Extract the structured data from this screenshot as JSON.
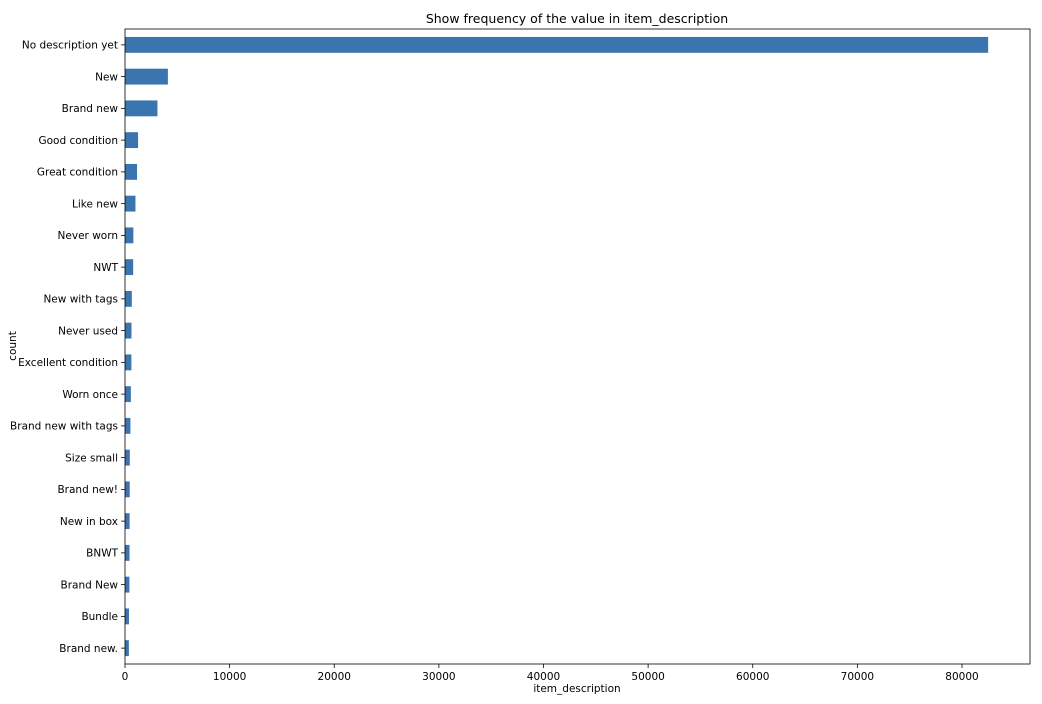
{
  "chart_data": {
    "type": "bar",
    "orientation": "horizontal",
    "title": "Show frequency of the value in item_description",
    "xlabel": "item_description",
    "ylabel": "count",
    "xlim": [
      0,
      86500
    ],
    "xticks": [
      0,
      10000,
      20000,
      30000,
      40000,
      50000,
      60000,
      70000,
      80000
    ],
    "grid": false,
    "legend": "none",
    "bar_color": "#3a75b0",
    "categories": [
      "No description yet",
      "New",
      "Brand new",
      "Good condition",
      "Great condition",
      "Like new",
      "Never worn",
      "NWT",
      "New with tags",
      "Never used",
      "Excellent condition",
      "Worn once",
      "Brand new with tags",
      "Size small",
      "Brand new!",
      "New in box",
      "BNWT",
      "Brand New",
      "Bundle",
      "Brand new."
    ],
    "values": [
      82500,
      4100,
      3100,
      1250,
      1150,
      1000,
      800,
      780,
      650,
      620,
      610,
      560,
      520,
      460,
      450,
      440,
      430,
      420,
      380,
      370
    ]
  }
}
